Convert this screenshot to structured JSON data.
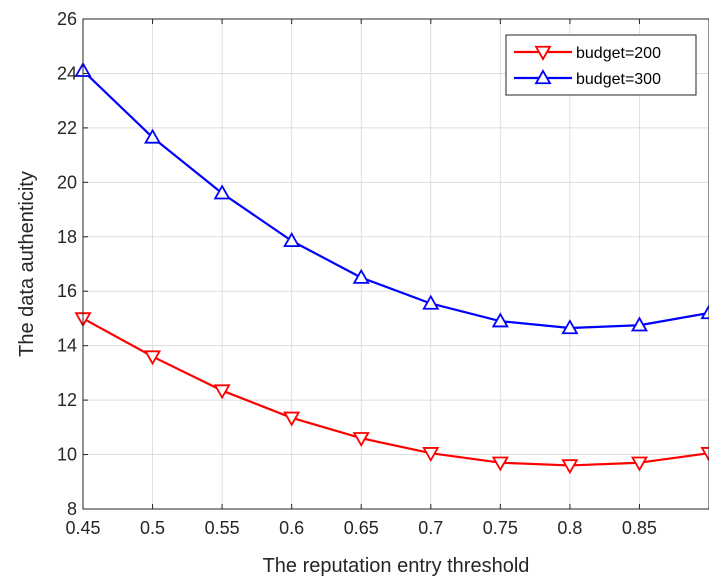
{
  "chart_data": {
    "type": "line",
    "xlabel": "The reputation entry threshold",
    "ylabel": "The data authenticity",
    "xlim": [
      0.45,
      0.9
    ],
    "ylim": [
      8,
      26
    ],
    "x_ticks": [
      0.45,
      0.5,
      0.55,
      0.6,
      0.65,
      0.7,
      0.75,
      0.8,
      0.85
    ],
    "x_tick_labels": [
      "0.45",
      "0.5",
      "0.55",
      "0.6",
      "0.65",
      "0.7",
      "0.75",
      "0.8",
      "0.85"
    ],
    "y_ticks": [
      8,
      10,
      12,
      14,
      16,
      18,
      20,
      22,
      24,
      26
    ],
    "y_tick_labels": [
      "8",
      "10",
      "12",
      "14",
      "16",
      "18",
      "20",
      "22",
      "24",
      "26"
    ],
    "grid": true,
    "legend_position": "top-right",
    "x": [
      0.45,
      0.5,
      0.55,
      0.6,
      0.65,
      0.7,
      0.75,
      0.8,
      0.85,
      0.9
    ],
    "series": [
      {
        "name": "budget=200",
        "color": "#ff0000",
        "marker": "triangle-down",
        "values": [
          15.0,
          13.6,
          12.35,
          11.35,
          10.6,
          10.05,
          9.7,
          9.6,
          9.7,
          10.05
        ]
      },
      {
        "name": "budget=300",
        "color": "#0000ff",
        "marker": "triangle-up",
        "values": [
          24.1,
          21.65,
          19.6,
          17.85,
          16.5,
          15.55,
          14.9,
          14.65,
          14.75,
          15.2
        ]
      }
    ]
  }
}
